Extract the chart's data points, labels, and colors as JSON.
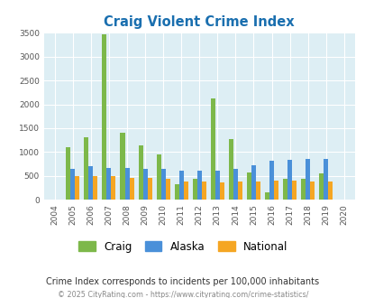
{
  "title": "Craig Violent Crime Index",
  "years": [
    "2004",
    "2005",
    "2006",
    "2007",
    "2008",
    "2009",
    "2010",
    "2011",
    "2012",
    "2013",
    "2014",
    "2015",
    "2016",
    "2017",
    "2018",
    "2019",
    "2020"
  ],
  "craig": [
    0,
    1100,
    1300,
    3460,
    1400,
    1130,
    950,
    330,
    430,
    2130,
    1270,
    570,
    160,
    430,
    440,
    550,
    0
  ],
  "alaska": [
    0,
    640,
    700,
    660,
    660,
    640,
    640,
    610,
    610,
    610,
    640,
    730,
    820,
    840,
    860,
    860,
    0
  ],
  "national": [
    0,
    490,
    490,
    490,
    460,
    450,
    430,
    390,
    390,
    370,
    390,
    390,
    400,
    400,
    390,
    380,
    0
  ],
  "craig_color": "#7db84a",
  "alaska_color": "#4a90d9",
  "national_color": "#f5a623",
  "bg_color": "#ddeef4",
  "title_color": "#1a6faf",
  "subtitle": "Crime Index corresponds to incidents per 100,000 inhabitants",
  "footer": "© 2025 CityRating.com - https://www.cityrating.com/crime-statistics/",
  "ylim": [
    0,
    3500
  ],
  "yticks": [
    0,
    500,
    1000,
    1500,
    2000,
    2500,
    3000,
    3500
  ]
}
